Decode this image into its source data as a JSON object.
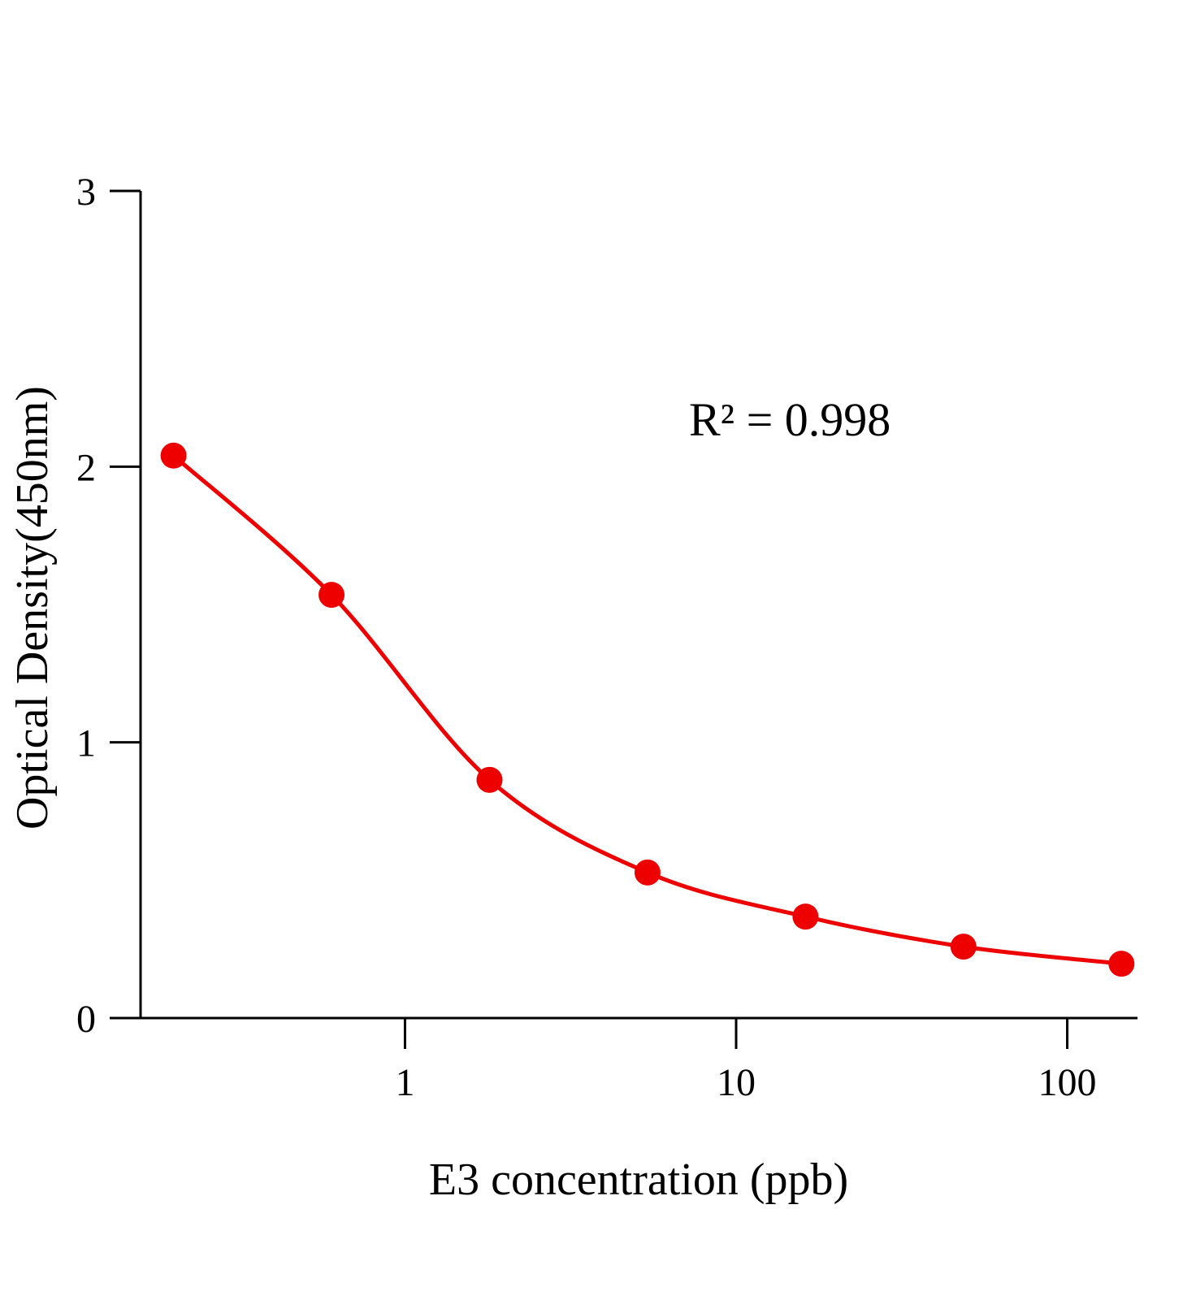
{
  "chart_data": {
    "type": "line",
    "title": "",
    "xlabel": "E3 concentration (ppb)",
    "ylabel": "Optical Density(450nm)",
    "x_scale": "log",
    "xlim": [
      0.159,
      163
    ],
    "ylim": [
      0,
      3
    ],
    "x_ticks": [
      1,
      10,
      100
    ],
    "x_tick_labels": [
      "1",
      "10",
      "100"
    ],
    "y_ticks": [
      0,
      1,
      2,
      3
    ],
    "y_tick_labels": [
      "0",
      "1",
      "2",
      "3"
    ],
    "grid": false,
    "annotation": "R² = 0.998",
    "color": "#ee0000",
    "series": [
      {
        "x": [
          0.2,
          0.6,
          1.8,
          5.4,
          16.2,
          48.6,
          145.8
        ],
        "y": [
          2.04,
          1.535,
          0.864,
          0.528,
          0.368,
          0.259,
          0.197
        ],
        "markers": true,
        "fit_curve": true
      }
    ]
  }
}
